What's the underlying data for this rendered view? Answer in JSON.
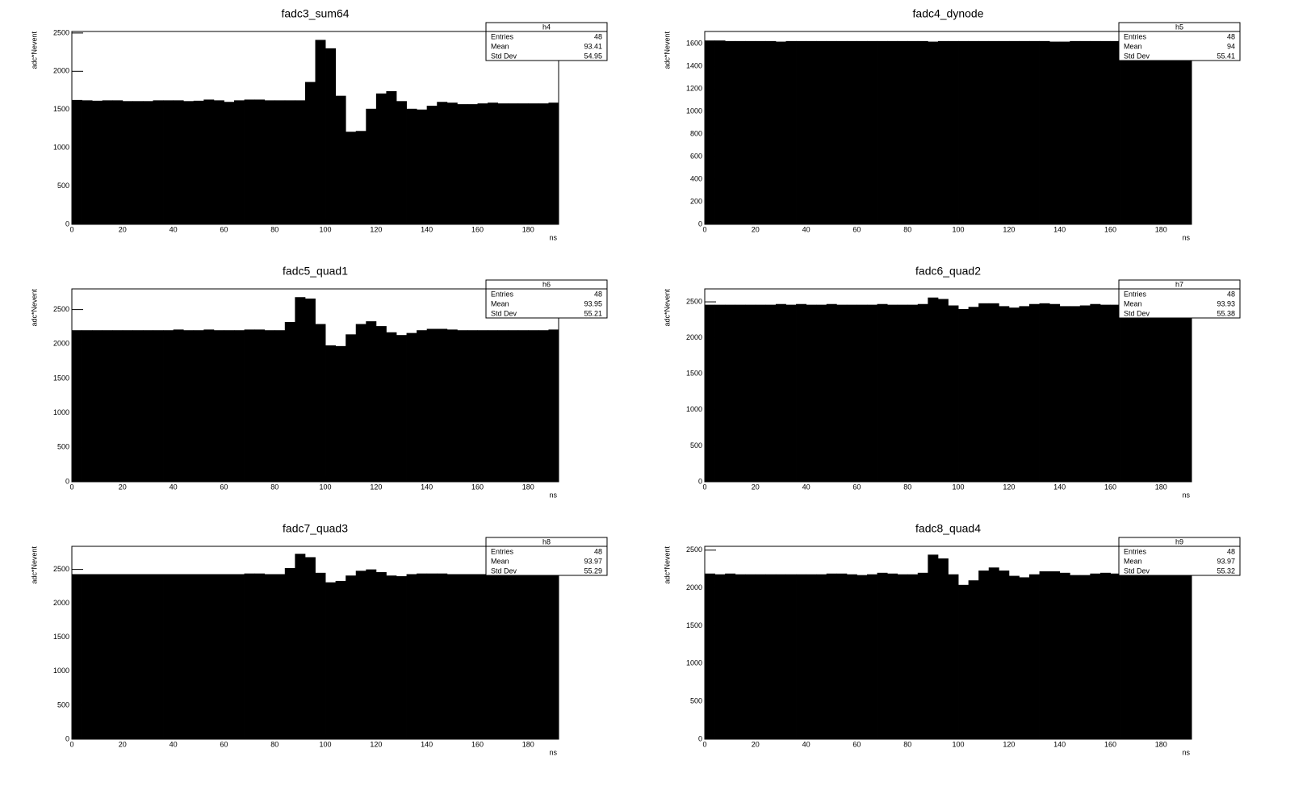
{
  "chart_data": [
    {
      "type": "histogram",
      "title": "fadc3_sum64",
      "xlabel": "ns",
      "ylabel": "adc*Nevent",
      "color": "#000000",
      "bins": [
        0,
        4,
        8,
        12,
        16,
        20,
        24,
        28,
        32,
        36,
        40,
        44,
        48,
        52,
        56,
        60,
        64,
        68,
        72,
        76,
        80,
        84,
        88,
        92,
        96,
        100,
        104,
        108,
        112,
        116,
        120,
        124,
        128,
        132,
        136,
        140,
        144,
        148,
        152,
        156,
        160,
        164,
        168,
        172,
        176,
        180,
        184,
        188,
        192
      ],
      "values": [
        1625,
        1620,
        1615,
        1620,
        1620,
        1610,
        1610,
        1610,
        1620,
        1620,
        1620,
        1610,
        1615,
        1630,
        1620,
        1600,
        1620,
        1630,
        1630,
        1620,
        1620,
        1620,
        1620,
        1860,
        2410,
        2300,
        1680,
        1210,
        1220,
        1510,
        1710,
        1740,
        1610,
        1510,
        1500,
        1550,
        1600,
        1590,
        1570,
        1570,
        1580,
        1590,
        1580,
        1580,
        1580,
        1580,
        1580,
        1590
      ],
      "xlim": [
        0,
        192
      ],
      "xticks": [
        0,
        20,
        40,
        60,
        80,
        100,
        120,
        140,
        160,
        180
      ],
      "ylim": [
        0,
        2520
      ],
      "yticks": [
        0,
        500,
        1000,
        1500,
        2000,
        2500
      ],
      "stats": {
        "title": "h4",
        "labels": [
          "Entries",
          "Mean",
          "Std Dev"
        ],
        "values": [
          48,
          93.41,
          54.95
        ]
      }
    },
    {
      "type": "histogram",
      "title": "fadc4_dynode",
      "xlabel": "ns",
      "ylabel": "adc*Nevent",
      "color": "#000000",
      "bins": [
        0,
        4,
        8,
        12,
        16,
        20,
        24,
        28,
        32,
        36,
        40,
        44,
        48,
        52,
        56,
        60,
        64,
        68,
        72,
        76,
        80,
        84,
        88,
        92,
        96,
        100,
        104,
        108,
        112,
        116,
        120,
        124,
        128,
        132,
        136,
        140,
        144,
        148,
        152,
        156,
        160,
        164,
        168,
        172,
        176,
        180,
        184,
        188,
        192
      ],
      "values": [
        1630,
        1630,
        1625,
        1625,
        1625,
        1625,
        1625,
        1620,
        1625,
        1625,
        1625,
        1625,
        1625,
        1625,
        1625,
        1625,
        1625,
        1625,
        1625,
        1625,
        1625,
        1625,
        1620,
        1625,
        1625,
        1625,
        1625,
        1625,
        1625,
        1625,
        1625,
        1625,
        1625,
        1625,
        1620,
        1620,
        1625,
        1625,
        1625,
        1625,
        1625,
        1625,
        1625,
        1625,
        1625,
        1625,
        1625,
        1625
      ],
      "xlim": [
        0,
        192
      ],
      "xticks": [
        0,
        20,
        40,
        60,
        80,
        100,
        120,
        140,
        160,
        180
      ],
      "ylim": [
        0,
        1710
      ],
      "yticks": [
        0,
        200,
        400,
        600,
        800,
        1000,
        1200,
        1400,
        1600
      ],
      "stats": {
        "title": "h5",
        "labels": [
          "Entries",
          "Mean",
          "Std Dev"
        ],
        "values": [
          48,
          94,
          55.41
        ]
      }
    },
    {
      "type": "histogram",
      "title": "fadc5_quad1",
      "xlabel": "ns",
      "ylabel": "adc*Nevent",
      "color": "#000000",
      "bins": [
        0,
        4,
        8,
        12,
        16,
        20,
        24,
        28,
        32,
        36,
        40,
        44,
        48,
        52,
        56,
        60,
        64,
        68,
        72,
        76,
        80,
        84,
        88,
        92,
        96,
        100,
        104,
        108,
        112,
        116,
        120,
        124,
        128,
        132,
        136,
        140,
        144,
        148,
        152,
        156,
        160,
        164,
        168,
        172,
        176,
        180,
        184,
        188,
        192
      ],
      "values": [
        2200,
        2200,
        2200,
        2200,
        2200,
        2200,
        2200,
        2200,
        2200,
        2200,
        2210,
        2200,
        2200,
        2210,
        2200,
        2200,
        2200,
        2210,
        2210,
        2200,
        2200,
        2320,
        2680,
        2660,
        2290,
        1980,
        1970,
        2140,
        2290,
        2330,
        2260,
        2170,
        2130,
        2160,
        2200,
        2220,
        2220,
        2210,
        2200,
        2200,
        2200,
        2200,
        2200,
        2200,
        2200,
        2200,
        2200,
        2210
      ],
      "xlim": [
        0,
        192
      ],
      "xticks": [
        0,
        20,
        40,
        60,
        80,
        100,
        120,
        140,
        160,
        180
      ],
      "ylim": [
        0,
        2800
      ],
      "yticks": [
        0,
        500,
        1000,
        1500,
        2000,
        2500
      ],
      "stats": {
        "title": "h6",
        "labels": [
          "Entries",
          "Mean",
          "Std Dev"
        ],
        "values": [
          48,
          93.95,
          55.21
        ]
      }
    },
    {
      "type": "histogram",
      "title": "fadc6_quad2",
      "xlabel": "ns",
      "ylabel": "adc*Nevent",
      "color": "#000000",
      "bins": [
        0,
        4,
        8,
        12,
        16,
        20,
        24,
        28,
        32,
        36,
        40,
        44,
        48,
        52,
        56,
        60,
        64,
        68,
        72,
        76,
        80,
        84,
        88,
        92,
        96,
        100,
        104,
        108,
        112,
        116,
        120,
        124,
        128,
        132,
        136,
        140,
        144,
        148,
        152,
        156,
        160,
        164,
        168,
        172,
        176,
        180,
        184,
        188,
        192
      ],
      "values": [
        2460,
        2460,
        2460,
        2460,
        2460,
        2460,
        2460,
        2470,
        2460,
        2470,
        2460,
        2460,
        2470,
        2460,
        2460,
        2460,
        2460,
        2470,
        2460,
        2460,
        2460,
        2470,
        2560,
        2540,
        2450,
        2400,
        2430,
        2480,
        2480,
        2440,
        2420,
        2440,
        2470,
        2480,
        2470,
        2440,
        2440,
        2450,
        2470,
        2460,
        2460,
        2460,
        2460,
        2460,
        2460,
        2460,
        2460,
        2460
      ],
      "xlim": [
        0,
        192
      ],
      "xticks": [
        0,
        20,
        40,
        60,
        80,
        100,
        120,
        140,
        160,
        180
      ],
      "ylim": [
        0,
        2680
      ],
      "yticks": [
        0,
        500,
        1000,
        1500,
        2000,
        2500
      ],
      "stats": {
        "title": "h7",
        "labels": [
          "Entries",
          "Mean",
          "Std Dev"
        ],
        "values": [
          48,
          93.93,
          55.38
        ]
      }
    },
    {
      "type": "histogram",
      "title": "fadc7_quad3",
      "xlabel": "ns",
      "ylabel": "adc*Nevent",
      "color": "#000000",
      "bins": [
        0,
        4,
        8,
        12,
        16,
        20,
        24,
        28,
        32,
        36,
        40,
        44,
        48,
        52,
        56,
        60,
        64,
        68,
        72,
        76,
        80,
        84,
        88,
        92,
        96,
        100,
        104,
        108,
        112,
        116,
        120,
        124,
        128,
        132,
        136,
        140,
        144,
        148,
        152,
        156,
        160,
        164,
        168,
        172,
        176,
        180,
        184,
        188,
        192
      ],
      "values": [
        2430,
        2430,
        2430,
        2430,
        2430,
        2430,
        2430,
        2430,
        2430,
        2430,
        2430,
        2430,
        2430,
        2430,
        2430,
        2430,
        2430,
        2440,
        2440,
        2430,
        2430,
        2520,
        2730,
        2680,
        2450,
        2310,
        2330,
        2410,
        2480,
        2500,
        2460,
        2410,
        2400,
        2430,
        2440,
        2440,
        2440,
        2430,
        2430,
        2430,
        2430,
        2430,
        2430,
        2430,
        2430,
        2430,
        2430,
        2430
      ],
      "xlim": [
        0,
        192
      ],
      "xticks": [
        0,
        20,
        40,
        60,
        80,
        100,
        120,
        140,
        160,
        180
      ],
      "ylim": [
        0,
        2840
      ],
      "yticks": [
        0,
        500,
        1000,
        1500,
        2000,
        2500
      ],
      "stats": {
        "title": "h8",
        "labels": [
          "Entries",
          "Mean",
          "Std Dev"
        ],
        "values": [
          48,
          93.97,
          55.29
        ]
      }
    },
    {
      "type": "histogram",
      "title": "fadc8_quad4",
      "xlabel": "ns",
      "ylabel": "adc*Nevent",
      "color": "#000000",
      "bins": [
        0,
        4,
        8,
        12,
        16,
        20,
        24,
        28,
        32,
        36,
        40,
        44,
        48,
        52,
        56,
        60,
        64,
        68,
        72,
        76,
        80,
        84,
        88,
        92,
        96,
        100,
        104,
        108,
        112,
        116,
        120,
        124,
        128,
        132,
        136,
        140,
        144,
        148,
        152,
        156,
        160,
        164,
        168,
        172,
        176,
        180,
        184,
        188,
        192
      ],
      "values": [
        2190,
        2180,
        2190,
        2180,
        2180,
        2180,
        2180,
        2180,
        2180,
        2180,
        2180,
        2180,
        2190,
        2190,
        2180,
        2170,
        2180,
        2200,
        2190,
        2180,
        2180,
        2200,
        2440,
        2390,
        2180,
        2040,
        2100,
        2230,
        2270,
        2230,
        2160,
        2140,
        2180,
        2220,
        2220,
        2200,
        2170,
        2170,
        2190,
        2200,
        2190,
        2190,
        2190,
        2190,
        2190,
        2190,
        2190,
        2190
      ],
      "xlim": [
        0,
        192
      ],
      "xticks": [
        0,
        20,
        40,
        60,
        80,
        100,
        120,
        140,
        160,
        180
      ],
      "ylim": [
        0,
        2550
      ],
      "yticks": [
        0,
        500,
        1000,
        1500,
        2000,
        2500
      ],
      "stats": {
        "title": "h9",
        "labels": [
          "Entries",
          "Mean",
          "Std Dev"
        ],
        "values": [
          48,
          93.97,
          55.32
        ]
      }
    }
  ]
}
